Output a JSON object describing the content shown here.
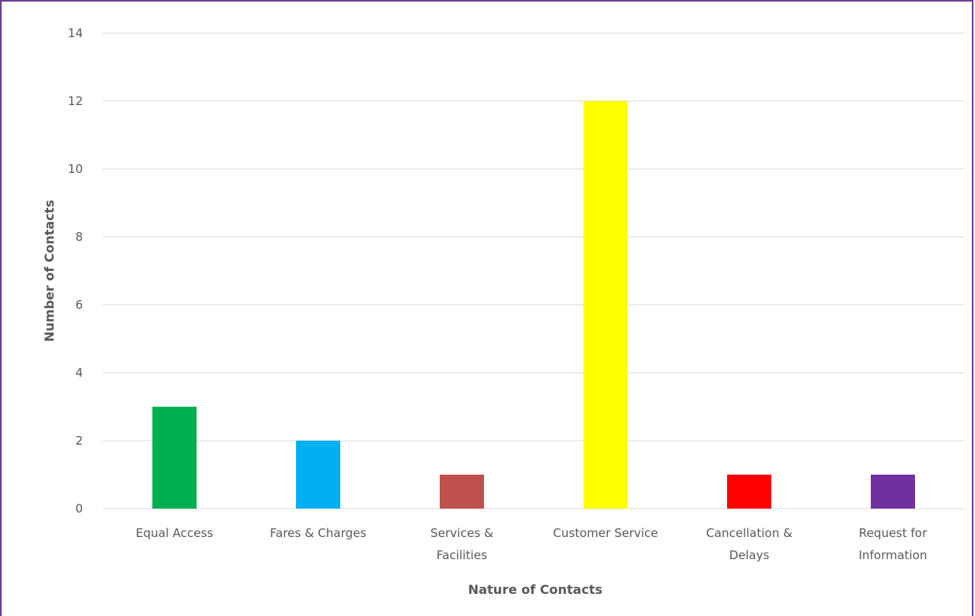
{
  "chart_data": {
    "type": "bar",
    "title": "",
    "xlabel": "Nature of Contacts",
    "ylabel": "Number of Contacts",
    "ylim": [
      0,
      14
    ],
    "yticks": [
      0,
      2,
      4,
      6,
      8,
      10,
      12,
      14
    ],
    "grid": true,
    "legend": "none",
    "categories": [
      [
        "Equal Access"
      ],
      [
        "Fares & Charges"
      ],
      [
        "Services &",
        "Facilities"
      ],
      [
        "Customer Service"
      ],
      [
        "Cancellation &",
        "Delays"
      ],
      [
        "Request for",
        "Information"
      ]
    ],
    "values": [
      3,
      2,
      1,
      12,
      1,
      1
    ],
    "colors": [
      "#00b050",
      "#00b0f0",
      "#c0504d",
      "#ffff00",
      "#ff0000",
      "#7030a0"
    ]
  },
  "style": {
    "frame_color": "#6a3d8f",
    "grid_color": "#d9d9d9",
    "text_color": "#595959"
  }
}
